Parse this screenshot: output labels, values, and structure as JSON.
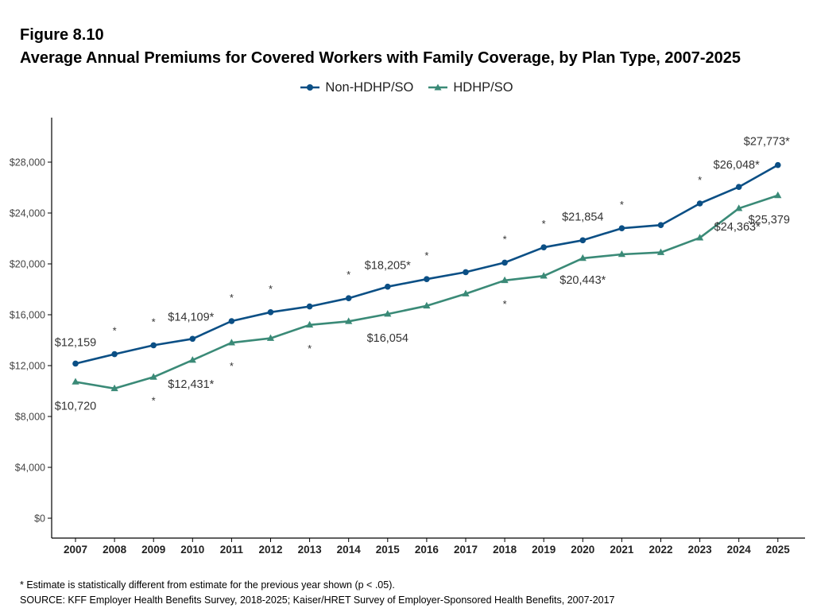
{
  "figure_label": "Figure 8.10",
  "title": "Average Annual Premiums for Covered Workers with Family Coverage, by Plan Type, 2007-2025",
  "footnote": "* Estimate is statistically different from estimate for the previous year shown (p < .05).",
  "source": "SOURCE: KFF Employer Health Benefits Survey, 2018-2025; Kaiser/HRET Survey of Employer-Sponsored Health Benefits, 2007-2017",
  "chart_data": {
    "type": "line",
    "x": [
      2007,
      2008,
      2009,
      2010,
      2011,
      2012,
      2013,
      2014,
      2015,
      2016,
      2017,
      2018,
      2019,
      2020,
      2021,
      2022,
      2023,
      2024,
      2025
    ],
    "ylim": [
      0,
      30000
    ],
    "yticks": [
      0,
      4000,
      8000,
      12000,
      16000,
      20000,
      24000,
      28000
    ],
    "ytick_labels": [
      "$0",
      "$4,000",
      "$8,000",
      "$12,000",
      "$16,000",
      "$20,000",
      "$24,000",
      "$28,000"
    ],
    "xlabel": "",
    "ylabel": "",
    "legend_position": "top-center",
    "grid": false,
    "series": [
      {
        "name": "Non-HDHP/SO",
        "color": "#0b4f85",
        "marker": "circle",
        "values": [
          12159,
          12900,
          13600,
          14109,
          15500,
          16200,
          16650,
          17300,
          18205,
          18800,
          19350,
          20100,
          21300,
          21854,
          22800,
          23050,
          24750,
          26048,
          27773
        ],
        "significance_marker_years": [
          2008,
          2009,
          2011,
          2012,
          2014,
          2016,
          2018,
          2019,
          2021,
          2023
        ],
        "data_labels": [
          {
            "year": 2007,
            "text": "$12,159"
          },
          {
            "year": 2010,
            "text": "$14,109*"
          },
          {
            "year": 2015,
            "text": "$18,205*"
          },
          {
            "year": 2020,
            "text": "$21,854"
          },
          {
            "year": 2024,
            "text": "$26,048*"
          },
          {
            "year": 2025,
            "text": "$27,773*"
          }
        ]
      },
      {
        "name": "HDHP/SO",
        "color": "#3a8a77",
        "marker": "triangle",
        "values": [
          10720,
          10200,
          11100,
          12431,
          13800,
          14150,
          15200,
          15480,
          16054,
          16700,
          17650,
          18700,
          19050,
          20443,
          20750,
          20900,
          22050,
          24363,
          25379
        ],
        "significance_marker_years": [
          2009,
          2011,
          2013,
          2018
        ],
        "data_labels": [
          {
            "year": 2007,
            "text": "$10,720"
          },
          {
            "year": 2010,
            "text": "$12,431*"
          },
          {
            "year": 2015,
            "text": "$16,054"
          },
          {
            "year": 2020,
            "text": "$20,443*"
          },
          {
            "year": 2024,
            "text": "$24,363*"
          },
          {
            "year": 2025,
            "text": "$25,379"
          }
        ]
      }
    ]
  }
}
